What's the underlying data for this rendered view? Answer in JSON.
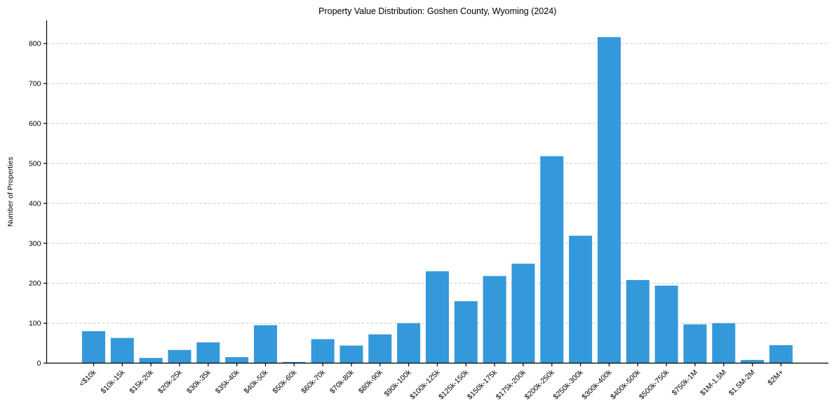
{
  "chart_data": {
    "type": "bar",
    "title": "Property Value Distribution: Goshen County, Wyoming (2024)",
    "xlabel": "",
    "ylabel": "Number of Properties",
    "categories": [
      "<$10k",
      "$10k-15k",
      "$15k-20k",
      "$20k-25k",
      "$30k-35k",
      "$35k-40k",
      "$40k-50k",
      "$50k-60k",
      "$60k-70k",
      "$70k-80k",
      "$80k-90k",
      "$90k-100k",
      "$100k-125k",
      "$125k-150k",
      "$150k-175k",
      "$175k-200k",
      "$200k-250k",
      "$250k-300k",
      "$300k-400k",
      "$400k-500k",
      "$500k-750k",
      "$750k-1M",
      "$1M-1.5M",
      "$1.5M-2M",
      "$2M+"
    ],
    "values": [
      80,
      63,
      13,
      33,
      52,
      15,
      95,
      3,
      60,
      44,
      72,
      100,
      230,
      155,
      218,
      249,
      518,
      319,
      816,
      208,
      194,
      97,
      100,
      8,
      45
    ],
    "yticks": [
      0,
      100,
      200,
      300,
      400,
      500,
      600,
      700,
      800
    ],
    "ylim": [
      0,
      858
    ],
    "bar_color": "#3499db",
    "axis_color": "#000000",
    "grid": true,
    "grid_style": "dashed",
    "grid_color": "#c9c9c9",
    "legend": "none",
    "x_tick_rotation_deg": 45
  }
}
